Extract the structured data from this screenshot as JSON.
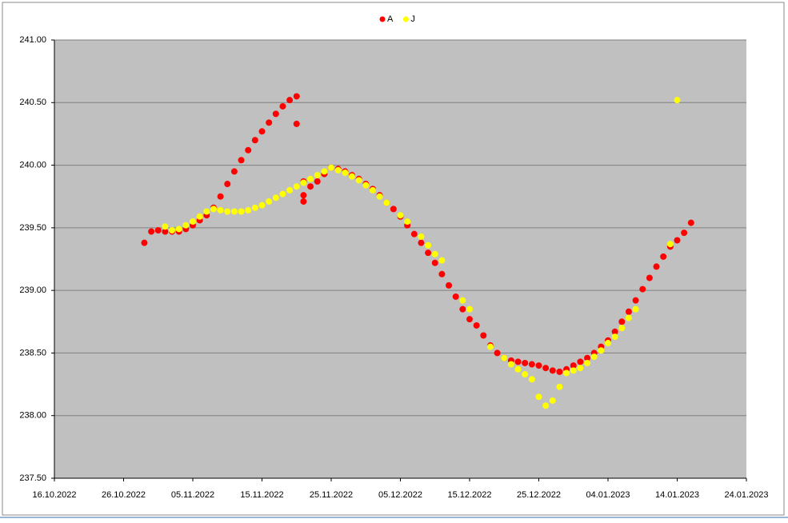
{
  "chart_data": {
    "type": "scatter",
    "xlim": [
      "2022-10-16",
      "2023-01-24"
    ],
    "xticks": [
      {
        "value": "2022-10-16",
        "label": "16.10.2022"
      },
      {
        "value": "2022-10-26",
        "label": "26.10.2022"
      },
      {
        "value": "2022-11-05",
        "label": "05.11.2022"
      },
      {
        "value": "2022-11-15",
        "label": "15.11.2022"
      },
      {
        "value": "2022-11-25",
        "label": "25.11.2022"
      },
      {
        "value": "2022-12-05",
        "label": "05.12.2022"
      },
      {
        "value": "2022-12-15",
        "label": "15.12.2022"
      },
      {
        "value": "2022-12-25",
        "label": "25.12.2022"
      },
      {
        "value": "2023-01-04",
        "label": "04.01.2023"
      },
      {
        "value": "2023-01-14",
        "label": "14.01.2023"
      },
      {
        "value": "2023-01-24",
        "label": "24.01.2023"
      }
    ],
    "ylim": [
      237.5,
      241
    ],
    "yticks": [
      {
        "value": 237.5,
        "label": "237.50"
      },
      {
        "value": 238,
        "label": "238.00"
      },
      {
        "value": 238.5,
        "label": "238.50"
      },
      {
        "value": 239,
        "label": "239.00"
      },
      {
        "value": 239.5,
        "label": "239.50"
      },
      {
        "value": 240,
        "label": "240.00"
      },
      {
        "value": 240.5,
        "label": "240.50"
      },
      {
        "value": 241,
        "label": "241.00"
      }
    ],
    "grid": true,
    "legend": "top",
    "series": [
      {
        "name": "A",
        "color": "#ff0000",
        "x": [
          "2022-10-29",
          "2022-10-30",
          "2022-10-31",
          "2022-11-01",
          "2022-11-02",
          "2022-11-03",
          "2022-11-04",
          "2022-11-05",
          "2022-11-06",
          "2022-11-07",
          "2022-11-08",
          "2022-11-09",
          "2022-11-10",
          "2022-11-11",
          "2022-11-12",
          "2022-11-13",
          "2022-11-14",
          "2022-11-15",
          "2022-11-16",
          "2022-11-17",
          "2022-11-18",
          "2022-11-19",
          "2022-11-20",
          "2022-11-20",
          "2022-11-21",
          "2022-11-21",
          "2022-11-21",
          "2022-11-22",
          "2022-11-23",
          "2022-11-24",
          "2022-11-25",
          "2022-11-26",
          "2022-11-27",
          "2022-11-28",
          "2022-11-29",
          "2022-11-30",
          "2022-12-01",
          "2022-12-02",
          "2022-12-03",
          "2022-12-04",
          "2022-12-05",
          "2022-12-06",
          "2022-12-07",
          "2022-12-08",
          "2022-12-09",
          "2022-12-10",
          "2022-12-11",
          "2022-12-12",
          "2022-12-13",
          "2022-12-14",
          "2022-12-15",
          "2022-12-16",
          "2022-12-17",
          "2022-12-18",
          "2022-12-19",
          "2022-12-20",
          "2022-12-21",
          "2022-12-22",
          "2022-12-23",
          "2022-12-24",
          "2022-12-25",
          "2022-12-26",
          "2022-12-27",
          "2022-12-28",
          "2022-12-29",
          "2022-12-30",
          "2022-12-31",
          "2023-01-01",
          "2023-01-02",
          "2023-01-03",
          "2023-01-04",
          "2023-01-05",
          "2023-01-06",
          "2023-01-07",
          "2023-01-08",
          "2023-01-09",
          "2023-01-10",
          "2023-01-11",
          "2023-01-12",
          "2023-01-13",
          "2023-01-14",
          "2023-01-15",
          "2023-01-16"
        ],
        "values": [
          239.38,
          239.47,
          239.48,
          239.47,
          239.47,
          239.47,
          239.49,
          239.52,
          239.56,
          239.6,
          239.66,
          239.75,
          239.85,
          239.95,
          240.04,
          240.12,
          240.2,
          240.27,
          240.34,
          240.41,
          240.47,
          240.52,
          240.55,
          240.33,
          239.87,
          239.76,
          239.71,
          239.83,
          239.87,
          239.93,
          239.98,
          239.97,
          239.95,
          239.92,
          239.89,
          239.85,
          239.81,
          239.76,
          239.7,
          239.65,
          239.59,
          239.52,
          239.45,
          239.38,
          239.3,
          239.22,
          239.13,
          239.04,
          238.95,
          238.85,
          238.77,
          238.72,
          238.64,
          238.56,
          238.5,
          238.46,
          238.44,
          238.43,
          238.42,
          238.41,
          238.4,
          238.38,
          238.36,
          238.35,
          238.37,
          238.4,
          238.43,
          238.46,
          238.5,
          238.55,
          238.6,
          238.67,
          238.75,
          238.83,
          238.92,
          239.01,
          239.1,
          239.19,
          239.27,
          239.35,
          239.4,
          239.46,
          239.54
        ]
      },
      {
        "name": "J",
        "color": "#ffff00",
        "x": [
          "2022-11-01",
          "2022-11-02",
          "2022-11-03",
          "2022-11-04",
          "2022-11-05",
          "2022-11-06",
          "2022-11-07",
          "2022-11-08",
          "2022-11-09",
          "2022-11-10",
          "2022-11-11",
          "2022-11-12",
          "2022-11-13",
          "2022-11-14",
          "2022-11-15",
          "2022-11-16",
          "2022-11-17",
          "2022-11-18",
          "2022-11-19",
          "2022-11-20",
          "2022-11-21",
          "2022-11-22",
          "2022-11-23",
          "2022-11-24",
          "2022-11-25",
          "2022-11-26",
          "2022-11-27",
          "2022-11-28",
          "2022-11-29",
          "2022-11-30",
          "2022-12-01",
          "2022-12-02",
          "2022-12-03",
          "2022-12-05",
          "2022-12-06",
          "2022-12-08",
          "2022-12-09",
          "2022-12-10",
          "2022-12-11",
          "2022-12-14",
          "2022-12-15",
          "2022-12-18",
          "2022-12-20",
          "2022-12-21",
          "2022-12-22",
          "2022-12-23",
          "2022-12-24",
          "2022-12-25",
          "2022-12-26",
          "2022-12-27",
          "2022-12-28",
          "2022-12-29",
          "2022-12-30",
          "2022-12-31",
          "2023-01-01",
          "2023-01-02",
          "2023-01-03",
          "2023-01-04",
          "2023-01-05",
          "2023-01-06",
          "2023-01-07",
          "2023-01-08",
          "2023-01-13",
          "2023-01-14"
        ],
        "values": [
          239.51,
          239.48,
          239.49,
          239.52,
          239.55,
          239.59,
          239.63,
          239.65,
          239.64,
          239.63,
          239.63,
          239.63,
          239.64,
          239.66,
          239.68,
          239.71,
          239.74,
          239.77,
          239.8,
          239.83,
          239.86,
          239.89,
          239.92,
          239.95,
          239.98,
          239.96,
          239.94,
          239.91,
          239.88,
          239.84,
          239.8,
          239.75,
          239.7,
          239.6,
          239.55,
          239.43,
          239.36,
          239.29,
          239.24,
          238.92,
          238.85,
          238.55,
          238.46,
          238.41,
          238.37,
          238.33,
          238.29,
          238.15,
          238.08,
          238.12,
          238.23,
          238.34,
          238.36,
          238.38,
          238.42,
          238.47,
          238.52,
          238.58,
          238.63,
          238.7,
          238.78,
          238.85,
          239.37,
          240.52
        ]
      }
    ]
  }
}
